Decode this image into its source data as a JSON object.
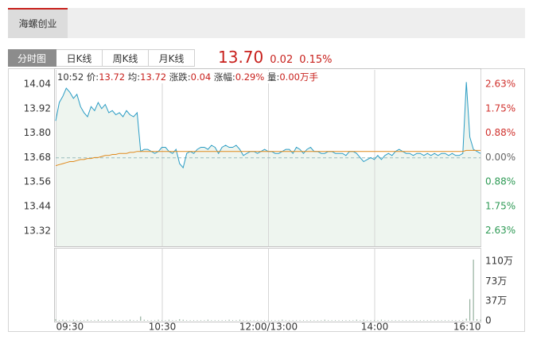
{
  "tabs": {
    "stock": "海螺创业",
    "views": [
      "分时图",
      "日K线",
      "周K线",
      "月K线"
    ]
  },
  "quote": {
    "price": "13.70",
    "change": "0.02",
    "change_pct": "0.15%"
  },
  "info": {
    "time": "10:52",
    "items": [
      {
        "label": "价:",
        "value": "13.72"
      },
      {
        "label": "均:",
        "value": "13.72"
      },
      {
        "label": "涨跌:",
        "value": "0.04"
      },
      {
        "label": "涨幅:",
        "value": "0.29%"
      },
      {
        "label": "量:",
        "value": "0.00万手"
      }
    ]
  },
  "chart_data": [
    {
      "type": "line",
      "xlim": [
        0,
        120
      ],
      "ylim": [
        13.245,
        14.11
      ],
      "yticks": [
        14.04,
        13.92,
        {
          "value": 13.8,
          "label": "13.80"
        },
        13.68,
        13.56,
        13.44,
        13.32
      ],
      "y2lim": [
        -3.18,
        3.14
      ],
      "y2ticks": [
        {
          "value": 2.63,
          "label": "2.63%"
        },
        {
          "value": 1.75,
          "label": "1.75%"
        },
        {
          "value": 0.88,
          "label": "0.88%"
        },
        {
          "value": 0,
          "label": "0.00%"
        },
        {
          "value": -0.88,
          "label": "0.88%"
        },
        {
          "value": -1.75,
          "label": "1.75%"
        },
        {
          "value": -2.63,
          "label": "2.63%"
        }
      ],
      "fill": "#eef5ef",
      "series": [
        {
          "color": "#2a9cc4",
          "values": [
            13.86,
            13.95,
            13.98,
            14.02,
            14.0,
            13.97,
            13.99,
            13.93,
            13.9,
            13.88,
            13.93,
            13.91,
            13.95,
            13.92,
            13.94,
            13.9,
            13.91,
            13.89,
            13.9,
            13.88,
            13.91,
            13.89,
            13.88,
            13.9,
            13.71,
            13.72,
            13.72,
            13.71,
            13.7,
            13.71,
            13.73,
            13.73,
            13.71,
            13.7,
            13.72,
            13.65,
            13.63,
            13.7,
            13.71,
            13.7,
            13.72,
            13.73,
            13.73,
            13.72,
            13.74,
            13.73,
            13.7,
            13.73,
            13.74,
            13.73,
            13.73,
            13.74,
            13.72,
            13.69,
            13.7,
            13.71,
            13.71,
            13.7,
            13.71,
            13.72,
            13.71,
            13.71,
            13.7,
            13.7,
            13.71,
            13.72,
            13.72,
            13.7,
            13.73,
            13.72,
            13.7,
            13.72,
            13.73,
            13.71,
            13.71,
            13.7,
            13.7,
            13.71,
            13.71,
            13.7,
            13.7,
            13.7,
            13.69,
            13.71,
            13.71,
            13.7,
            13.68,
            13.66,
            13.67,
            13.68,
            13.67,
            13.69,
            13.67,
            13.69,
            13.7,
            13.69,
            13.71,
            13.72,
            13.71,
            13.7,
            13.7,
            13.69,
            13.7,
            13.7,
            13.69,
            13.7,
            13.69,
            13.7,
            13.69,
            13.7,
            13.7,
            13.69,
            13.7,
            13.69,
            13.69,
            13.7,
            14.05,
            13.78,
            13.72,
            13.71,
            13.7
          ]
        },
        {
          "color": "#e0891c",
          "values": [
            13.64,
            13.645,
            13.65,
            13.655,
            13.66,
            13.66,
            13.665,
            13.67,
            13.67,
            13.675,
            13.675,
            13.68,
            13.68,
            13.685,
            13.69,
            13.69,
            13.695,
            13.695,
            13.7,
            13.7,
            13.7,
            13.705,
            13.705,
            13.71,
            13.71,
            13.71,
            13.71,
            13.71,
            13.71,
            13.71,
            13.71,
            13.71,
            13.71,
            13.71,
            13.71,
            13.71,
            13.71,
            13.71,
            13.71,
            13.71,
            13.71,
            13.71,
            13.71,
            13.71,
            13.71,
            13.71,
            13.71,
            13.71,
            13.71,
            13.71,
            13.71,
            13.71,
            13.71,
            13.71,
            13.71,
            13.71,
            13.71,
            13.71,
            13.71,
            13.71,
            13.71,
            13.71,
            13.71,
            13.71,
            13.71,
            13.71,
            13.71,
            13.71,
            13.71,
            13.71,
            13.71,
            13.71,
            13.71,
            13.71,
            13.71,
            13.71,
            13.71,
            13.71,
            13.71,
            13.71,
            13.71,
            13.71,
            13.71,
            13.71,
            13.71,
            13.71,
            13.71,
            13.71,
            13.71,
            13.71,
            13.71,
            13.71,
            13.71,
            13.71,
            13.71,
            13.71,
            13.71,
            13.71,
            13.71,
            13.71,
            13.71,
            13.71,
            13.71,
            13.71,
            13.71,
            13.71,
            13.71,
            13.71,
            13.71,
            13.71,
            13.71,
            13.71,
            13.71,
            13.71,
            13.71,
            13.71,
            13.715,
            13.715,
            13.715,
            13.715,
            13.715
          ]
        }
      ]
    },
    {
      "type": "bar",
      "xlim": [
        0,
        120
      ],
      "xticks": [
        {
          "value": 0,
          "label": "09:30"
        },
        {
          "value": 30,
          "label": "10:30"
        },
        {
          "value": 60,
          "label": "12:00/13:00"
        },
        {
          "value": 90,
          "label": "14:00"
        },
        {
          "value": 120,
          "label": "16:10"
        }
      ],
      "ylim": [
        0,
        135
      ],
      "yticks": [
        {
          "value": 110,
          "label": "110万"
        },
        {
          "value": 73,
          "label": "73万"
        },
        {
          "value": 37,
          "label": "37万"
        },
        0
      ],
      "color": "#7fa08a",
      "values": [
        3,
        1,
        2,
        1,
        1,
        2,
        1,
        1,
        1,
        2,
        1,
        1,
        2,
        1,
        1,
        1,
        2,
        1,
        1,
        1,
        1,
        2,
        1,
        1,
        8,
        2,
        1,
        1,
        1,
        2,
        1,
        1,
        2,
        1,
        1,
        3,
        2,
        1,
        1,
        1,
        1,
        1,
        1,
        2,
        1,
        1,
        1,
        1,
        1,
        2,
        1,
        1,
        2,
        1,
        1,
        1,
        1,
        1,
        1,
        1,
        1,
        1,
        1,
        1,
        2,
        1,
        1,
        1,
        1,
        1,
        1,
        1,
        1,
        1,
        1,
        1,
        2,
        1,
        1,
        1,
        1,
        1,
        1,
        1,
        1,
        2,
        1,
        2,
        1,
        1,
        1,
        1,
        2,
        1,
        1,
        1,
        1,
        1,
        1,
        1,
        1,
        1,
        1,
        1,
        1,
        1,
        1,
        1,
        1,
        1,
        1,
        1,
        1,
        1,
        1,
        1,
        4,
        40,
        113,
        3,
        2
      ]
    }
  ]
}
